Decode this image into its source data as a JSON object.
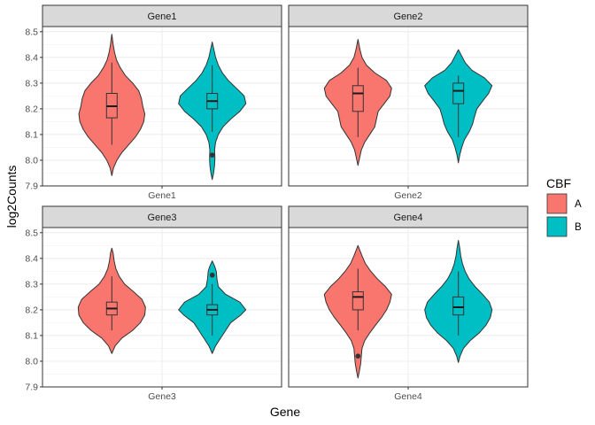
{
  "chart_data": {
    "type": "violin",
    "xlabel": "Gene",
    "ylabel": "log2Counts",
    "ylim": [
      7.9,
      8.52
    ],
    "yticks": [
      "7.9",
      "8.0",
      "8.1",
      "8.2",
      "8.3",
      "8.4",
      "8.5"
    ],
    "grid": true,
    "legend": {
      "title": "CBF",
      "position": "right",
      "entries": [
        {
          "label": "A",
          "color": "#F8766D"
        },
        {
          "label": "B",
          "color": "#00BFC4"
        }
      ]
    },
    "panels": [
      {
        "strip": "Gene1",
        "xtick": "Gene1",
        "groups": [
          {
            "cbf": "A",
            "min": 7.94,
            "max": 8.49,
            "box": {
              "whisker_low": 8.06,
              "q1": 8.165,
              "median": 8.21,
              "q3": 8.26,
              "whisker_high": 8.38
            },
            "outliers": [],
            "density": [
              [
                7.94,
                0.0
              ],
              [
                7.97,
                0.05
              ],
              [
                8.0,
                0.15
              ],
              [
                8.03,
                0.3
              ],
              [
                8.06,
                0.5
              ],
              [
                8.09,
                0.7
              ],
              [
                8.12,
                0.85
              ],
              [
                8.15,
                0.95
              ],
              [
                8.18,
                0.98
              ],
              [
                8.21,
                0.92
              ],
              [
                8.24,
                0.88
              ],
              [
                8.27,
                0.8
              ],
              [
                8.3,
                0.62
              ],
              [
                8.33,
                0.4
              ],
              [
                8.36,
                0.25
              ],
              [
                8.39,
                0.14
              ],
              [
                8.42,
                0.08
              ],
              [
                8.45,
                0.04
              ],
              [
                8.49,
                0.0
              ]
            ]
          },
          {
            "cbf": "B",
            "min": 7.925,
            "max": 8.46,
            "box": {
              "whisker_low": 8.11,
              "q1": 8.2,
              "median": 8.23,
              "q3": 8.26,
              "whisker_high": 8.37
            },
            "outliers": [
              8.02
            ],
            "density": [
              [
                7.925,
                0.0
              ],
              [
                7.95,
                0.04
              ],
              [
                7.98,
                0.07
              ],
              [
                8.01,
                0.08
              ],
              [
                8.04,
                0.07
              ],
              [
                8.07,
                0.1
              ],
              [
                8.1,
                0.18
              ],
              [
                8.13,
                0.32
              ],
              [
                8.16,
                0.55
              ],
              [
                8.19,
                0.82
              ],
              [
                8.22,
                1.0
              ],
              [
                8.25,
                0.95
              ],
              [
                8.28,
                0.72
              ],
              [
                8.31,
                0.48
              ],
              [
                8.34,
                0.3
              ],
              [
                8.37,
                0.18
              ],
              [
                8.4,
                0.1
              ],
              [
                8.43,
                0.05
              ],
              [
                8.46,
                0.0
              ]
            ]
          }
        ]
      },
      {
        "strip": "Gene2",
        "xtick": "Gene2",
        "groups": [
          {
            "cbf": "A",
            "min": 7.98,
            "max": 8.47,
            "box": {
              "whisker_low": 8.09,
              "q1": 8.19,
              "median": 8.26,
              "q3": 8.29,
              "whisker_high": 8.36
            },
            "outliers": [],
            "density": [
              [
                7.98,
                0.0
              ],
              [
                8.01,
                0.05
              ],
              [
                8.04,
                0.1
              ],
              [
                8.07,
                0.2
              ],
              [
                8.1,
                0.35
              ],
              [
                8.13,
                0.5
              ],
              [
                8.16,
                0.55
              ],
              [
                8.19,
                0.6
              ],
              [
                8.22,
                0.78
              ],
              [
                8.25,
                0.95
              ],
              [
                8.28,
                1.0
              ],
              [
                8.31,
                0.85
              ],
              [
                8.34,
                0.5
              ],
              [
                8.37,
                0.25
              ],
              [
                8.4,
                0.12
              ],
              [
                8.43,
                0.06
              ],
              [
                8.47,
                0.0
              ]
            ]
          },
          {
            "cbf": "B",
            "min": 7.99,
            "max": 8.43,
            "box": {
              "whisker_low": 8.09,
              "q1": 8.22,
              "median": 8.27,
              "q3": 8.3,
              "whisker_high": 8.33
            },
            "outliers": [],
            "density": [
              [
                7.99,
                0.0
              ],
              [
                8.02,
                0.04
              ],
              [
                8.05,
                0.1
              ],
              [
                8.08,
                0.18
              ],
              [
                8.11,
                0.32
              ],
              [
                8.14,
                0.42
              ],
              [
                8.17,
                0.48
              ],
              [
                8.2,
                0.55
              ],
              [
                8.23,
                0.72
              ],
              [
                8.26,
                0.9
              ],
              [
                8.29,
                1.0
              ],
              [
                8.32,
                0.78
              ],
              [
                8.35,
                0.4
              ],
              [
                8.38,
                0.2
              ],
              [
                8.41,
                0.08
              ],
              [
                8.43,
                0.0
              ]
            ]
          }
        ]
      },
      {
        "strip": "Gene3",
        "xtick": "Gene3",
        "groups": [
          {
            "cbf": "A",
            "min": 8.03,
            "max": 8.44,
            "box": {
              "whisker_low": 8.12,
              "q1": 8.18,
              "median": 8.205,
              "q3": 8.23,
              "whisker_high": 8.33
            },
            "outliers": [],
            "density": [
              [
                8.03,
                0.0
              ],
              [
                8.06,
                0.1
              ],
              [
                8.09,
                0.3
              ],
              [
                8.12,
                0.62
              ],
              [
                8.15,
                0.85
              ],
              [
                8.18,
                0.98
              ],
              [
                8.21,
                1.0
              ],
              [
                8.24,
                0.9
              ],
              [
                8.27,
                0.65
              ],
              [
                8.3,
                0.38
              ],
              [
                8.33,
                0.22
              ],
              [
                8.36,
                0.12
              ],
              [
                8.39,
                0.07
              ],
              [
                8.42,
                0.04
              ],
              [
                8.44,
                0.0
              ]
            ]
          },
          {
            "cbf": "B",
            "min": 8.03,
            "max": 8.39,
            "box": {
              "whisker_low": 8.1,
              "q1": 8.18,
              "median": 8.2,
              "q3": 8.22,
              "whisker_high": 8.3
            },
            "outliers": [
              8.335
            ],
            "density": [
              [
                8.03,
                0.0
              ],
              [
                8.06,
                0.1
              ],
              [
                8.09,
                0.25
              ],
              [
                8.12,
                0.4
              ],
              [
                8.15,
                0.55
              ],
              [
                8.18,
                0.85
              ],
              [
                8.2,
                1.0
              ],
              [
                8.23,
                0.82
              ],
              [
                8.26,
                0.4
              ],
              [
                8.29,
                0.18
              ],
              [
                8.32,
                0.14
              ],
              [
                8.35,
                0.12
              ],
              [
                8.37,
                0.07
              ],
              [
                8.39,
                0.0
              ]
            ]
          }
        ]
      },
      {
        "strip": "Gene4",
        "xtick": "Gene4",
        "groups": [
          {
            "cbf": "A",
            "min": 7.935,
            "max": 8.45,
            "box": {
              "whisker_low": 8.12,
              "q1": 8.2,
              "median": 8.25,
              "q3": 8.27,
              "whisker_high": 8.36
            },
            "outliers": [
              8.02
            ],
            "density": [
              [
                7.935,
                0.0
              ],
              [
                7.96,
                0.04
              ],
              [
                7.99,
                0.08
              ],
              [
                8.02,
                0.1
              ],
              [
                8.05,
                0.12
              ],
              [
                8.08,
                0.2
              ],
              [
                8.11,
                0.35
              ],
              [
                8.14,
                0.52
              ],
              [
                8.17,
                0.7
              ],
              [
                8.2,
                0.85
              ],
              [
                8.23,
                0.95
              ],
              [
                8.26,
                1.0
              ],
              [
                8.29,
                0.82
              ],
              [
                8.32,
                0.58
              ],
              [
                8.35,
                0.38
              ],
              [
                8.38,
                0.22
              ],
              [
                8.41,
                0.12
              ],
              [
                8.45,
                0.0
              ]
            ]
          },
          {
            "cbf": "B",
            "min": 7.995,
            "max": 8.47,
            "box": {
              "whisker_low": 8.1,
              "q1": 8.18,
              "median": 8.21,
              "q3": 8.25,
              "whisker_high": 8.35
            },
            "outliers": [],
            "density": [
              [
                7.995,
                0.0
              ],
              [
                8.02,
                0.05
              ],
              [
                8.05,
                0.15
              ],
              [
                8.08,
                0.35
              ],
              [
                8.11,
                0.62
              ],
              [
                8.14,
                0.82
              ],
              [
                8.17,
                0.95
              ],
              [
                8.2,
                1.0
              ],
              [
                8.23,
                0.92
              ],
              [
                8.26,
                0.72
              ],
              [
                8.29,
                0.5
              ],
              [
                8.32,
                0.32
              ],
              [
                8.35,
                0.2
              ],
              [
                8.38,
                0.12
              ],
              [
                8.41,
                0.07
              ],
              [
                8.44,
                0.04
              ],
              [
                8.47,
                0.0
              ]
            ]
          }
        ]
      }
    ]
  }
}
